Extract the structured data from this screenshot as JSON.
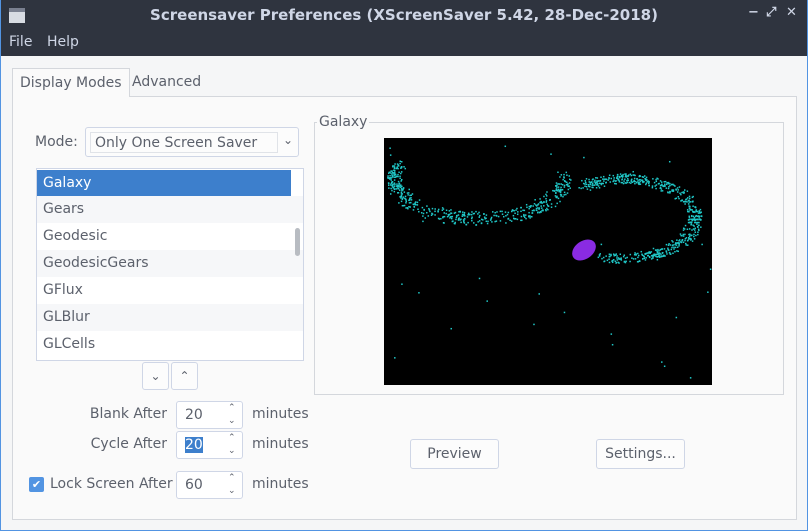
{
  "window": {
    "title": "Screensaver Preferences  (XScreenSaver 5.42, 28-Dec-2018)",
    "controls": {
      "minimize": "−",
      "maximize": "⤢",
      "close": "✕"
    }
  },
  "menu": [
    "File",
    "Help"
  ],
  "tabs": [
    {
      "label": "Display Modes",
      "active": true
    },
    {
      "label": "Advanced",
      "active": false
    }
  ],
  "mode": {
    "label": "Mode:",
    "value": "Only One Screen Saver"
  },
  "savers": [
    "Galaxy",
    "Gears",
    "Geodesic",
    "GeodesicGears",
    "GFlux",
    "GLBlur",
    "GLCells"
  ],
  "selected_saver": "Galaxy",
  "blank": {
    "label": "Blank After",
    "value": "20",
    "unit": "minutes"
  },
  "cycle": {
    "label": "Cycle After",
    "value": "20",
    "unit": "minutes"
  },
  "lock": {
    "label": "Lock Screen After",
    "value": "60",
    "unit": "minutes",
    "checked": true
  },
  "preview_frame": {
    "title": "Galaxy"
  },
  "buttons": {
    "preview": "Preview",
    "settings": "Settings..."
  },
  "colors": {
    "accent": "#3d7fcc",
    "titlebar": "#2f343f",
    "stars": "#20c8c8",
    "core": "#8a2be2"
  }
}
